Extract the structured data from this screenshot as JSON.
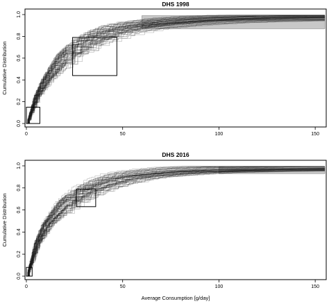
{
  "chart_data": [
    {
      "type": "line",
      "title": "DHS 1998",
      "xlabel": "",
      "ylabel": "Cumulative Distribution",
      "xlim": [
        0,
        155
      ],
      "ylim": [
        0,
        1
      ],
      "xticks": [
        "0",
        "50",
        "100",
        "150"
      ],
      "yticks": [
        "0.0",
        "0.2",
        "0.4",
        "0.6",
        "0.8",
        "1.0"
      ],
      "grid": false,
      "legend": "none",
      "series_count": 60,
      "median_curve": {
        "x": [
          0,
          5,
          10,
          20,
          30,
          40,
          50,
          60,
          80,
          100,
          120,
          155
        ],
        "y": [
          0.0,
          0.25,
          0.4,
          0.62,
          0.74,
          0.82,
          0.87,
          0.9,
          0.935,
          0.955,
          0.965,
          0.975
        ]
      },
      "shaded_band": {
        "x": [
          60,
          155
        ],
        "y": [
          0.87,
          0.99
        ]
      },
      "quantile_boxes": [
        {
          "x": [
            0,
            7
          ],
          "y": [
            0,
            0.15
          ]
        },
        {
          "x": [
            24,
            47
          ],
          "y": [
            0.44,
            0.79
          ]
        }
      ]
    },
    {
      "type": "line",
      "title": "DHS 2016",
      "xlabel": "Average Consumption [g/day]",
      "ylabel": "Cumulative Distribution",
      "xlim": [
        0,
        155
      ],
      "ylim": [
        0,
        1
      ],
      "xticks": [
        "0",
        "50",
        "100",
        "150"
      ],
      "yticks": [
        "0.0",
        "0.2",
        "0.4",
        "0.6",
        "0.8",
        "1.0"
      ],
      "grid": false,
      "legend": "none",
      "series_count": 60,
      "median_curve": {
        "x": [
          0,
          5,
          10,
          20,
          30,
          40,
          50,
          60,
          80,
          100,
          120,
          155
        ],
        "y": [
          0.0,
          0.3,
          0.47,
          0.67,
          0.78,
          0.85,
          0.9,
          0.925,
          0.955,
          0.97,
          0.975,
          0.985
        ]
      },
      "shaded_band": {
        "x": [
          100,
          155
        ],
        "y": [
          0.93,
          0.99
        ]
      },
      "quantile_boxes": [
        {
          "x": [
            0,
            3
          ],
          "y": [
            0,
            0.08
          ]
        },
        {
          "x": [
            26,
            36
          ],
          "y": [
            0.63,
            0.79
          ]
        }
      ]
    }
  ]
}
